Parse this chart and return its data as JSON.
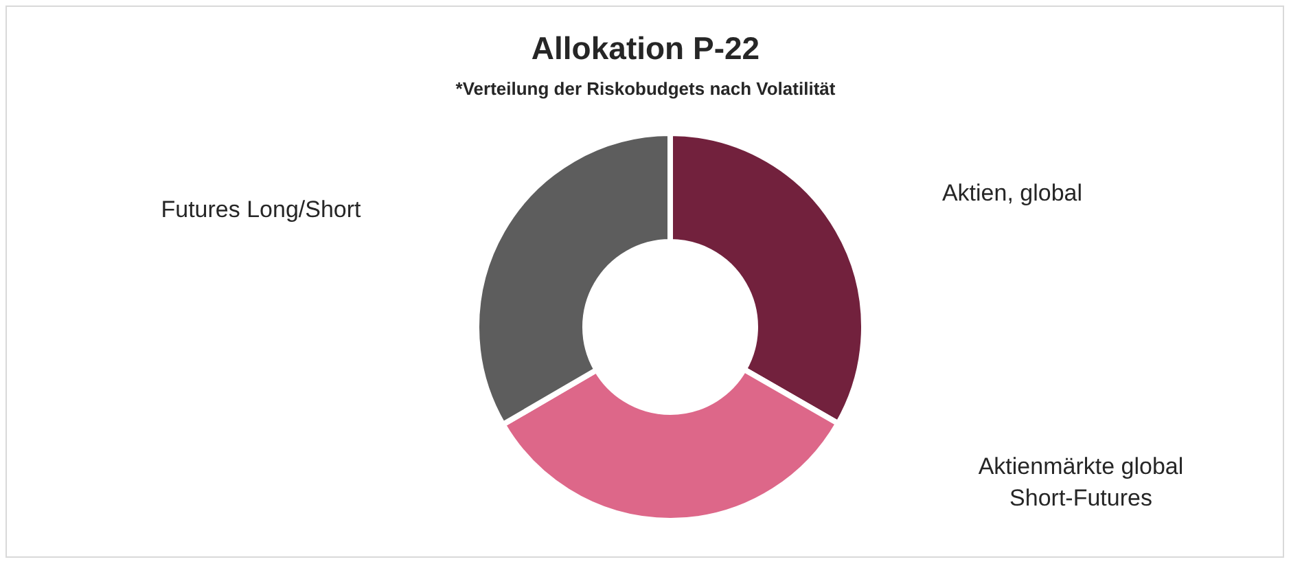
{
  "chart_data": {
    "type": "donut",
    "title": "Allokation P-22",
    "subtitle": "*Verteilung der Riskobudgets nach Volatilität",
    "categories": [
      "Aktien, global",
      "Aktienmärkte global Short-Futures",
      "Futures Long/Short"
    ],
    "values": [
      33.3,
      33.3,
      33.4
    ],
    "colors": [
      "#72213d",
      "#dd6789",
      "#5d5d5d"
    ]
  }
}
